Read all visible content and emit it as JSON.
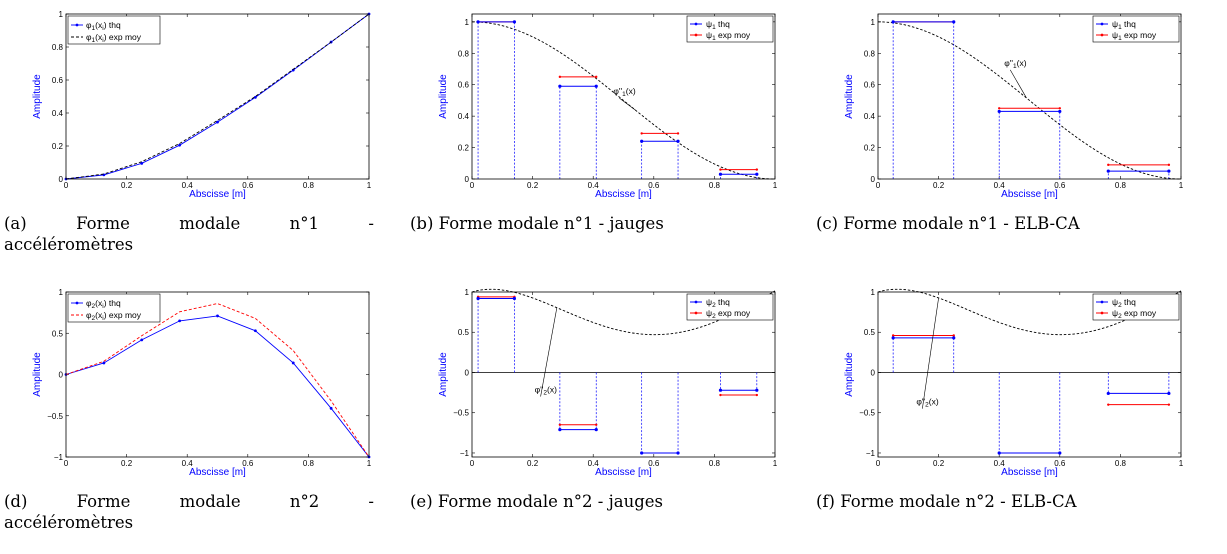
{
  "chart_data": [
    {
      "id": "a",
      "type": "line",
      "caption": "(a) Forme modale n°1 - accéléromètres",
      "xlabel": "Abscisse [m]",
      "ylabel": "Amplitude",
      "xlim": [
        0,
        1
      ],
      "ylim": [
        0,
        1
      ],
      "xticks": [
        0,
        0.2,
        0.4,
        0.6,
        0.8,
        1
      ],
      "yticks": [
        0,
        0.2,
        0.4,
        0.6,
        0.8,
        1
      ],
      "xtick_labels": [
        "0",
        "0.2",
        "0.4",
        "0.6",
        "0.8",
        "1"
      ],
      "ytick_labels": [
        "0",
        "0.2",
        "0.4",
        "0.6",
        "0.8",
        "1"
      ],
      "legend": {
        "position": "top-left",
        "entries": [
          "φ1(xi) thq",
          "φ1(xi) exp moy"
        ]
      },
      "series": [
        {
          "name": "φ1(xi) thq",
          "style": "blue-solid-dots",
          "color": "#0000ff",
          "x": [
            0,
            0.125,
            0.25,
            0.375,
            0.5,
            0.625,
            0.75,
            0.875,
            1
          ],
          "y": [
            0,
            0.025,
            0.095,
            0.205,
            0.345,
            0.495,
            0.66,
            0.83,
            1
          ]
        },
        {
          "name": "φ1(xi) exp moy",
          "style": "black-dashed",
          "color": "#000000",
          "x": [
            0,
            0.125,
            0.25,
            0.375,
            0.5,
            0.625,
            0.75,
            0.875,
            1
          ],
          "y": [
            0,
            0.03,
            0.105,
            0.215,
            0.355,
            0.5,
            0.665,
            0.83,
            1
          ]
        }
      ]
    },
    {
      "id": "b",
      "type": "step",
      "caption": "(b) Forme modale n°1 - jauges",
      "xlabel": "Abscisse [m]",
      "ylabel": "Amplitude",
      "xlim": [
        0,
        1
      ],
      "ylim": [
        0,
        1.05
      ],
      "xticks": [
        0,
        0.2,
        0.4,
        0.6,
        0.8,
        1
      ],
      "yticks": [
        0,
        0.2,
        0.4,
        0.6,
        0.8,
        1
      ],
      "xtick_labels": [
        "0",
        "0.2",
        "0.4",
        "0.6",
        "0.8",
        "1"
      ],
      "ytick_labels": [
        "0",
        "0.2",
        "0.4",
        "0.6",
        "0.8",
        "1"
      ],
      "legend": {
        "position": "top-right",
        "entries": [
          "ψ1 thq",
          "ψ1 exp moy"
        ]
      },
      "segments": [
        {
          "x0": 0.02,
          "x1": 0.14,
          "thq": 1.0,
          "exp": 1.0
        },
        {
          "x0": 0.29,
          "x1": 0.41,
          "thq": 0.59,
          "exp": 0.65
        },
        {
          "x0": 0.56,
          "x1": 0.68,
          "thq": 0.24,
          "exp": 0.29
        },
        {
          "x0": 0.82,
          "x1": 0.94,
          "thq": 0.03,
          "exp": 0.06
        }
      ],
      "curve": {
        "label": "φ''1(x)",
        "type": "mode1",
        "label_at": [
          0.46,
          0.54
        ]
      }
    },
    {
      "id": "c",
      "type": "step",
      "caption": "(c) Forme modale n°1 - ELB-CA",
      "xlabel": "Abscisse [m]",
      "ylabel": "Amplitude",
      "xlim": [
        0,
        1
      ],
      "ylim": [
        0,
        1.05
      ],
      "xticks": [
        0,
        0.2,
        0.4,
        0.6,
        0.8,
        1
      ],
      "yticks": [
        0,
        0.2,
        0.4,
        0.6,
        0.8,
        1
      ],
      "xtick_labels": [
        "0",
        "0.2",
        "0.4",
        "0.6",
        "0.8",
        "1"
      ],
      "ytick_labels": [
        "0",
        "0.2",
        "0.4",
        "0.6",
        "0.8",
        "1"
      ],
      "legend": {
        "position": "top-right",
        "entries": [
          "ψ1 thq",
          "ψ1 exp moy"
        ]
      },
      "segments": [
        {
          "x0": 0.05,
          "x1": 0.25,
          "thq": 1.0,
          "exp": 1.0
        },
        {
          "x0": 0.4,
          "x1": 0.6,
          "thq": 0.43,
          "exp": 0.45
        },
        {
          "x0": 0.76,
          "x1": 0.96,
          "thq": 0.05,
          "exp": 0.09
        }
      ],
      "curve": {
        "label": "φ''1(x)",
        "type": "mode1",
        "label_at": [
          0.41,
          0.72
        ]
      }
    },
    {
      "id": "d",
      "type": "line",
      "caption": "(d) Forme modale n°2 - accéléromètres",
      "xlabel": "Abscisse [m]",
      "ylabel": "Amplitude",
      "xlim": [
        0,
        1
      ],
      "ylim": [
        -1,
        1
      ],
      "xticks": [
        0,
        0.2,
        0.4,
        0.6,
        0.8,
        1
      ],
      "yticks": [
        -1,
        -0.5,
        0,
        0.5,
        1
      ],
      "xtick_labels": [
        "0",
        "0.2",
        "0.4",
        "0.6",
        "0.8",
        "1"
      ],
      "ytick_labels": [
        "−1",
        "−0.5",
        "0",
        "0.5",
        "1"
      ],
      "legend": {
        "position": "top-left",
        "entries": [
          "φ2(xi) thq",
          "φ2(xi) exp moy"
        ]
      },
      "series": [
        {
          "name": "φ2(xi) thq",
          "style": "blue-solid-dots",
          "color": "#0000ff",
          "x": [
            0,
            0.125,
            0.25,
            0.375,
            0.5,
            0.625,
            0.75,
            0.875,
            1
          ],
          "y": [
            0,
            0.14,
            0.42,
            0.65,
            0.71,
            0.53,
            0.14,
            -0.41,
            -1
          ]
        },
        {
          "name": "φ2(xi) exp moy",
          "style": "red-dashed",
          "color": "#ff0000",
          "x": [
            0,
            0.125,
            0.25,
            0.375,
            0.5,
            0.625,
            0.75,
            0.875,
            1
          ],
          "y": [
            0,
            0.16,
            0.47,
            0.76,
            0.86,
            0.68,
            0.29,
            -0.32,
            -1
          ]
        }
      ]
    },
    {
      "id": "e",
      "type": "step",
      "caption": "(e) Forme modale n°2 - jauges",
      "xlabel": "Abscisse [m]",
      "ylabel": "Amplitude",
      "xlim": [
        0,
        1
      ],
      "ylim": [
        -1.05,
        1
      ],
      "xticks": [
        0,
        0.2,
        0.4,
        0.6,
        0.8,
        1
      ],
      "yticks": [
        -1,
        -0.5,
        0,
        0.5,
        1
      ],
      "xtick_labels": [
        "0",
        "0.2",
        "0.4",
        "0.6",
        "0.8",
        "1"
      ],
      "ytick_labels": [
        "−1",
        "−0.5",
        "0",
        "0.5",
        "1"
      ],
      "legend": {
        "position": "top-right",
        "entries": [
          "ψ2 thq",
          "ψ2 exp moy"
        ]
      },
      "segments": [
        {
          "x0": 0.02,
          "x1": 0.14,
          "thq": 0.92,
          "exp": 0.94
        },
        {
          "x0": 0.29,
          "x1": 0.41,
          "thq": -0.71,
          "exp": -0.65
        },
        {
          "x0": 0.56,
          "x1": 0.68,
          "thq": -1.0,
          "exp": -1.0
        },
        {
          "x0": 0.82,
          "x1": 0.94,
          "thq": -0.22,
          "exp": -0.28
        }
      ],
      "curve": {
        "label": "φ''2(x)",
        "type": "mode2",
        "label_at": [
          0.2,
          -0.25
        ]
      }
    },
    {
      "id": "f",
      "type": "step",
      "caption": "(f) Forme modale n°2 - ELB-CA",
      "xlabel": "Abscisse [m]",
      "ylabel": "Amplitude",
      "xlim": [
        0,
        1
      ],
      "ylim": [
        -1.05,
        1
      ],
      "xticks": [
        0,
        0.2,
        0.4,
        0.6,
        0.8,
        1
      ],
      "yticks": [
        -1,
        -0.5,
        0,
        0.5,
        1
      ],
      "xtick_labels": [
        "0",
        "0.2",
        "0.4",
        "0.6",
        "0.8",
        "1"
      ],
      "ytick_labels": [
        "−1",
        "−0.5",
        "0",
        "0.5",
        "1"
      ],
      "legend": {
        "position": "top-right",
        "entries": [
          "ψ2 thq",
          "ψ2 exp moy"
        ]
      },
      "segments": [
        {
          "x0": 0.05,
          "x1": 0.25,
          "thq": 0.43,
          "exp": 0.46
        },
        {
          "x0": 0.4,
          "x1": 0.6,
          "thq": -1.0,
          "exp": -1.0
        },
        {
          "x0": 0.76,
          "x1": 0.96,
          "thq": -0.26,
          "exp": -0.4
        }
      ],
      "curve": {
        "label": "φ''2(x)",
        "type": "mode2",
        "label_at": [
          0.12,
          -0.4
        ]
      }
    }
  ]
}
